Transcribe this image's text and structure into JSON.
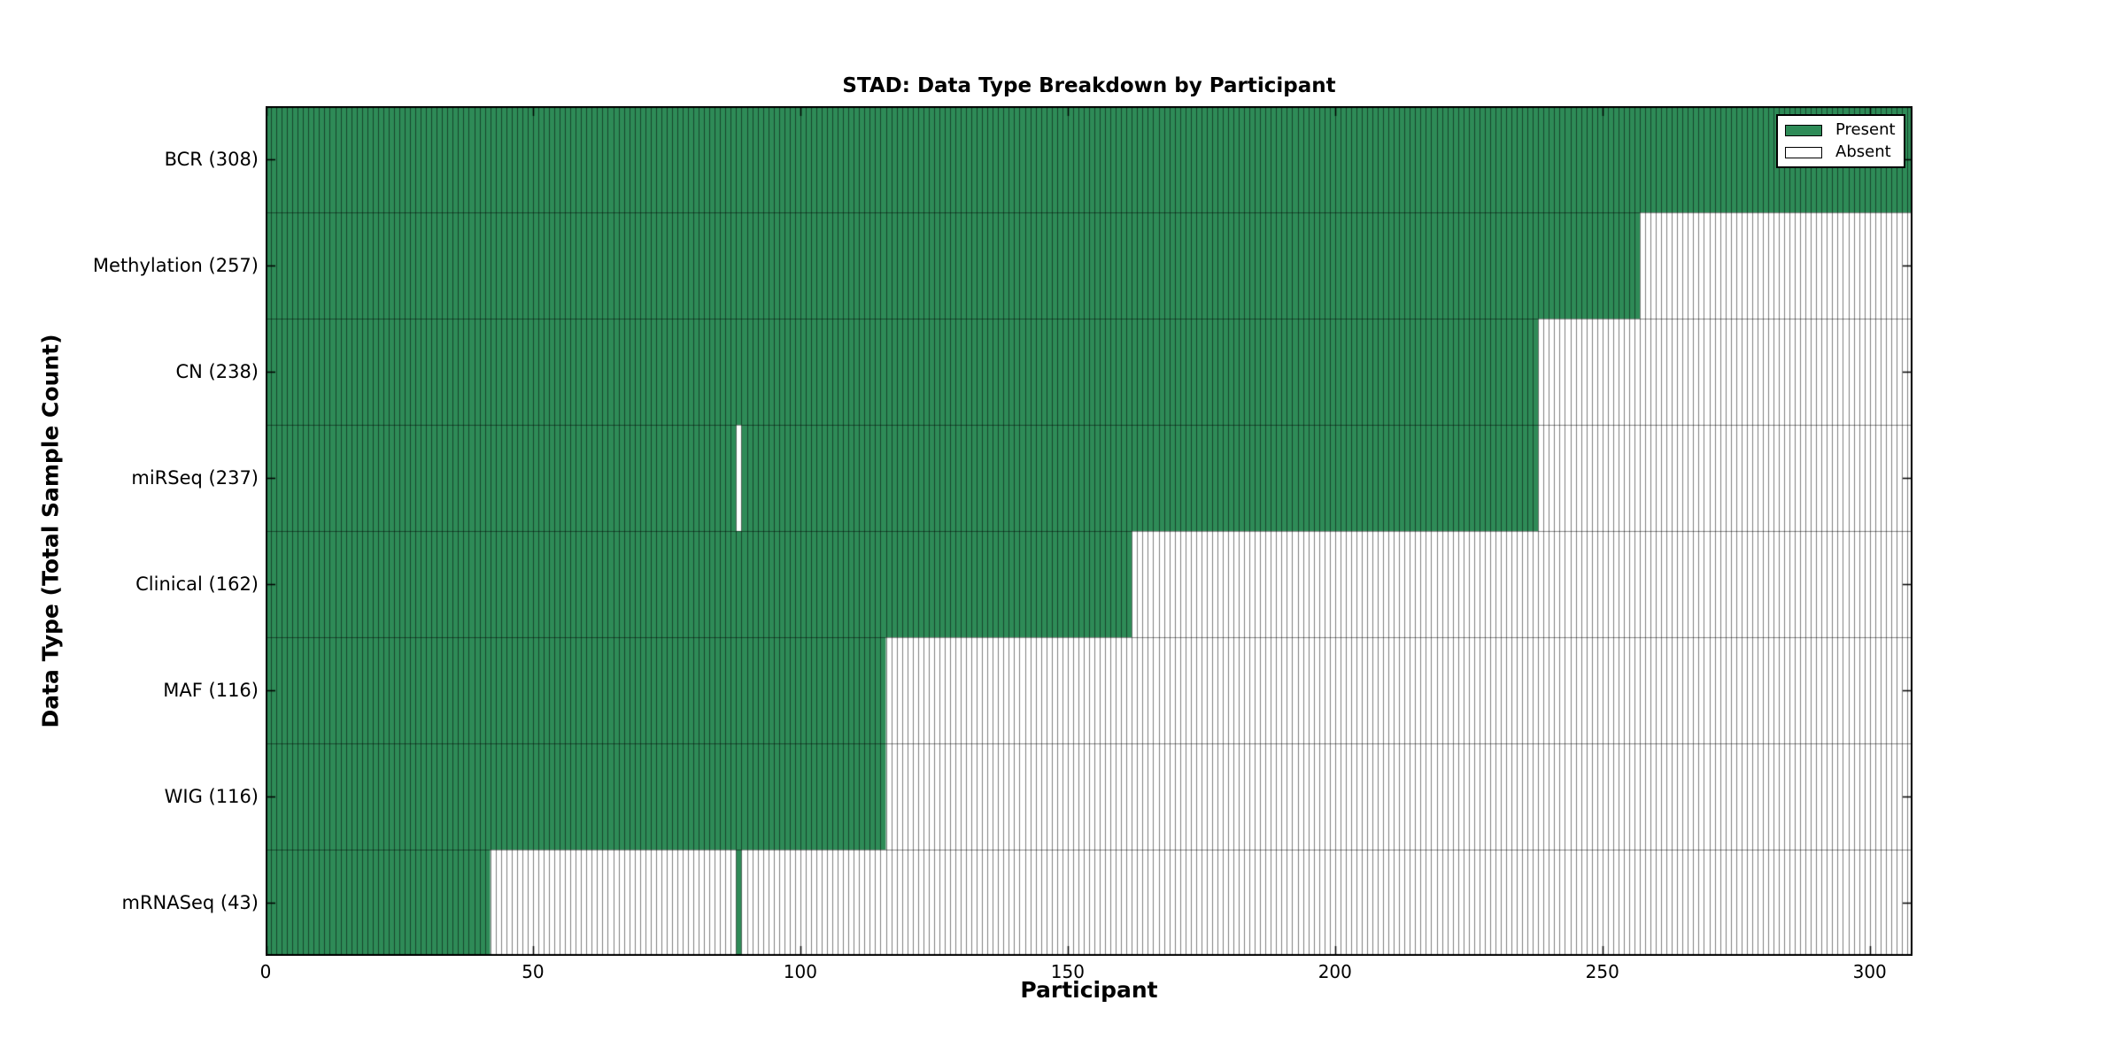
{
  "chart_data": {
    "type": "heatmap",
    "title": "STAD: Data Type Breakdown by Participant",
    "xlabel": "Participant",
    "ylabel": "Data Type (Total Sample Count)",
    "x_ticks": [
      0,
      50,
      100,
      150,
      200,
      250,
      300
    ],
    "x_max": 308,
    "n_participants": 308,
    "grid": false,
    "legend_position": "upper-right",
    "colors": {
      "present": "#2e8b57",
      "absent": "#ffffff",
      "cell_edge": "rgba(0,0,0,0.5)",
      "row_edge": "rgba(0,0,0,0.45)",
      "axis": "#000000",
      "background": "#ffffff"
    },
    "legend": [
      {
        "label": "Present",
        "color": "#2e8b57"
      },
      {
        "label": "Absent",
        "color": "#ffffff"
      }
    ],
    "rows": [
      {
        "label": "BCR (308)",
        "data_type": "BCR",
        "total": 308,
        "present_ranges": [
          [
            0,
            308
          ]
        ]
      },
      {
        "label": "Methylation (257)",
        "data_type": "Methylation",
        "total": 257,
        "present_ranges": [
          [
            0,
            257
          ]
        ]
      },
      {
        "label": "CN (238)",
        "data_type": "CN",
        "total": 238,
        "present_ranges": [
          [
            0,
            238
          ]
        ]
      },
      {
        "label": "miRSeq (237)",
        "data_type": "miRSeq",
        "total": 237,
        "present_ranges": [
          [
            0,
            88
          ],
          [
            89,
            238
          ]
        ]
      },
      {
        "label": "Clinical (162)",
        "data_type": "Clinical",
        "total": 162,
        "present_ranges": [
          [
            0,
            162
          ]
        ]
      },
      {
        "label": "MAF (116)",
        "data_type": "MAF",
        "total": 116,
        "present_ranges": [
          [
            0,
            116
          ]
        ]
      },
      {
        "label": "WIG (116)",
        "data_type": "WIG",
        "total": 116,
        "present_ranges": [
          [
            0,
            116
          ]
        ]
      },
      {
        "label": "mRNASeq (43)",
        "data_type": "mRNASeq",
        "total": 43,
        "present_ranges": [
          [
            0,
            42
          ],
          [
            88,
            89
          ]
        ]
      }
    ]
  }
}
